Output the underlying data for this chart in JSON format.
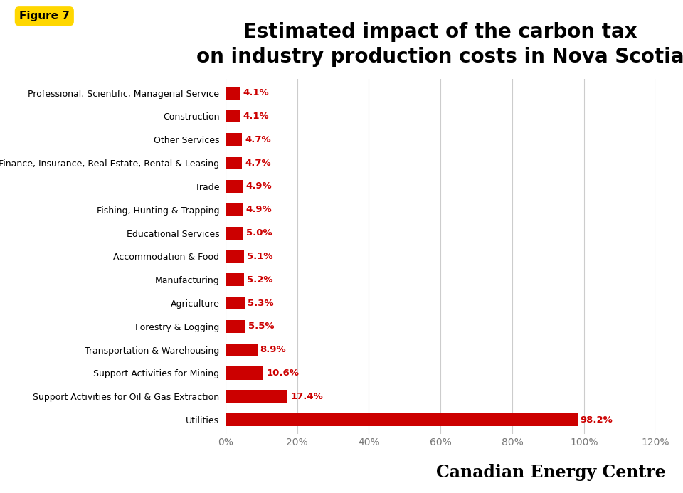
{
  "title": "Estimated impact of the carbon tax\non industry production costs in Nova Scotia",
  "figure_label": "Figure 7",
  "categories": [
    "Utilities",
    "Support Activities for Oil & Gas Extraction",
    "Support Activities for Mining",
    "Transportation & Warehousing",
    "Forestry & Logging",
    "Agriculture",
    "Manufacturing",
    "Accommodation & Food",
    "Educational Services",
    "Fishing, Hunting & Trapping",
    "Trade",
    "Finance, Insurance, Real Estate, Rental & Leasing",
    "Other Services",
    "Construction",
    "Professional, Scientific, Managerial Service"
  ],
  "values": [
    98.2,
    17.4,
    10.6,
    8.9,
    5.5,
    5.3,
    5.2,
    5.1,
    5.0,
    4.9,
    4.9,
    4.7,
    4.7,
    4.1,
    4.1
  ],
  "bar_color": "#CC0000",
  "label_color": "#CC0000",
  "background_color": "#FFFFFF",
  "figure_label_bg": "#FFD700",
  "figure_label_color": "#000000",
  "xlim": [
    0,
    120
  ],
  "xticks": [
    0,
    20,
    40,
    60,
    80,
    100,
    120
  ],
  "xtick_labels": [
    "0%",
    "20%",
    "40%",
    "60%",
    "80%",
    "100%",
    "120%"
  ],
  "title_fontsize": 20,
  "category_fontsize": 9.0,
  "value_fontsize": 9.5,
  "tick_fontsize": 10,
  "watermark": "Canadian Energy Centre",
  "watermark_fontsize": 17
}
